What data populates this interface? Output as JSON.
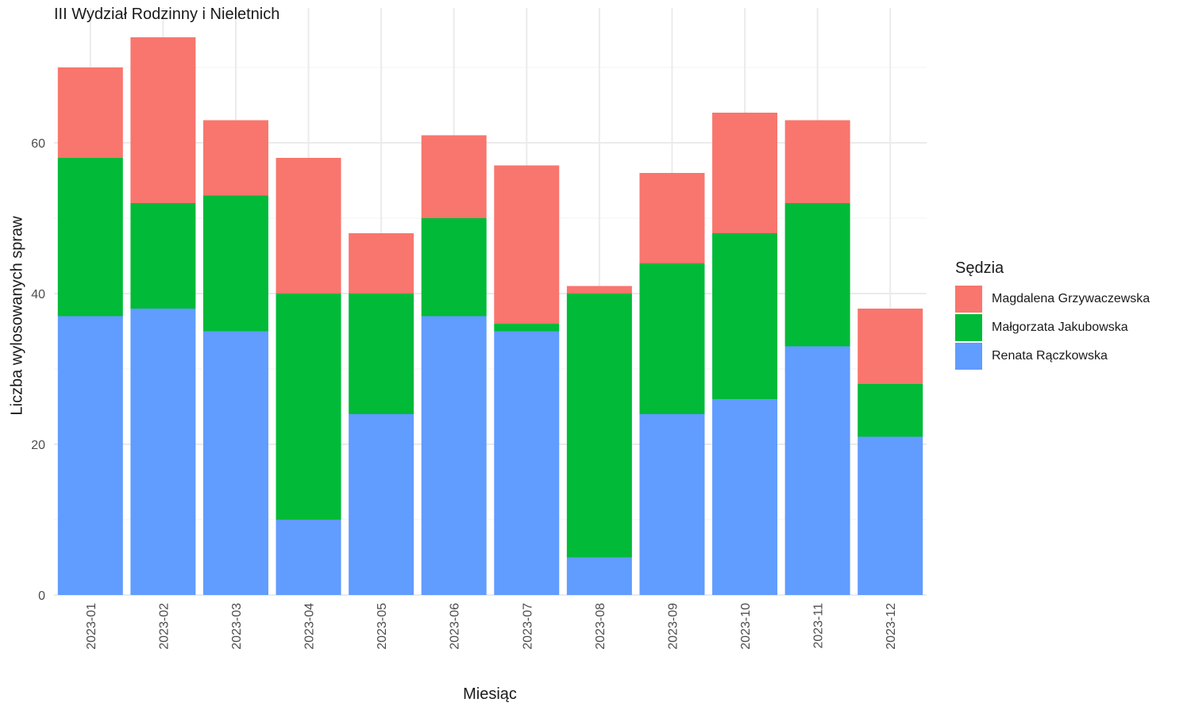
{
  "chart_data": {
    "type": "bar",
    "stacked": true,
    "title": "III Wydział Rodzinny i Nieletnich",
    "xlabel": "Miesiąc",
    "ylabel": "Liczba wylosowanych spraw",
    "ylim": [
      0,
      78
    ],
    "yticks": [
      "0",
      "20",
      "40",
      "60"
    ],
    "grid": true,
    "legend_title": "Sędzia",
    "legend_position": "right",
    "categories": [
      "2023-01",
      "2023-02",
      "2023-03",
      "2023-04",
      "2023-05",
      "2023-06",
      "2023-07",
      "2023-08",
      "2023-09",
      "2023-10",
      "2023-11",
      "2023-12"
    ],
    "series": [
      {
        "name": "Renata Rączkowska",
        "color": "#619CFF",
        "values": [
          37,
          38,
          35,
          10,
          24,
          37,
          35,
          5,
          24,
          26,
          33,
          21
        ]
      },
      {
        "name": "Małgorzata Jakubowska",
        "color": "#00BA38",
        "values": [
          21,
          14,
          18,
          30,
          16,
          13,
          1,
          35,
          20,
          22,
          19,
          7
        ]
      },
      {
        "name": "Magdalena Grzywaczewska",
        "color": "#F8766D",
        "values": [
          12,
          22,
          10,
          18,
          8,
          11,
          21,
          1,
          12,
          16,
          11,
          10
        ]
      }
    ],
    "legend_order": [
      "Magdalena Grzywaczewska",
      "Małgorzata Jakubowska",
      "Renata Rączkowska"
    ]
  }
}
